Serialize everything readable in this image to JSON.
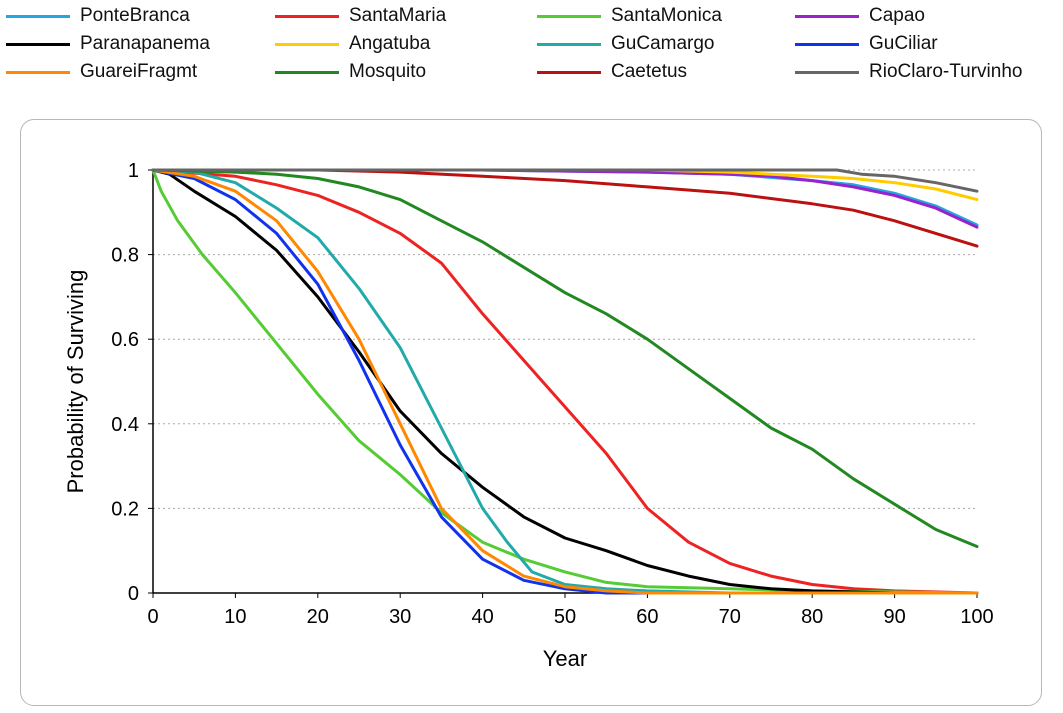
{
  "chart_data": {
    "type": "line",
    "title": "",
    "xlabel": "Year",
    "ylabel": "Probability of Surviving",
    "xlim": [
      0,
      100
    ],
    "ylim": [
      0,
      1
    ],
    "xticks": [
      0,
      10,
      20,
      30,
      40,
      50,
      60,
      70,
      80,
      90,
      100
    ],
    "yticks": [
      0,
      0.2,
      0.4,
      0.6,
      0.8,
      1
    ],
    "ytick_labels": [
      "0",
      "0.2",
      "0.4",
      "0.6",
      "0.8",
      "1"
    ],
    "grid": "horizontal dotted",
    "legend_position": "top, above plot in 4 columns",
    "series": [
      {
        "name": "PonteBranca",
        "color": "#22a7e0",
        "x": [
          0,
          20,
          40,
          60,
          70,
          80,
          85,
          90,
          95,
          100
        ],
        "y": [
          1,
          1,
          1,
          0.995,
          0.99,
          0.975,
          0.965,
          0.945,
          0.915,
          0.87
        ]
      },
      {
        "name": "SantaMaria",
        "color": "#ee2222",
        "x": [
          0,
          10,
          15,
          20,
          25,
          30,
          35,
          40,
          45,
          50,
          55,
          60,
          65,
          70,
          75,
          80,
          85,
          90,
          100
        ],
        "y": [
          1,
          0.985,
          0.965,
          0.94,
          0.9,
          0.85,
          0.78,
          0.66,
          0.55,
          0.44,
          0.33,
          0.2,
          0.12,
          0.07,
          0.04,
          0.02,
          0.01,
          0.005,
          0
        ]
      },
      {
        "name": "SantaMonica",
        "color": "#55cc33",
        "x": [
          0,
          1,
          3,
          6,
          10,
          15,
          20,
          25,
          30,
          35,
          40,
          45,
          50,
          55,
          60,
          70,
          80,
          100
        ],
        "y": [
          1,
          0.95,
          0.88,
          0.8,
          0.71,
          0.59,
          0.47,
          0.36,
          0.28,
          0.19,
          0.12,
          0.08,
          0.05,
          0.025,
          0.015,
          0.01,
          0.005,
          0
        ]
      },
      {
        "name": "Capao",
        "color": "#9922cc",
        "x": [
          0,
          20,
          40,
          60,
          70,
          75,
          80,
          85,
          90,
          95,
          100
        ],
        "y": [
          1,
          1,
          1,
          0.995,
          0.99,
          0.985,
          0.975,
          0.96,
          0.94,
          0.91,
          0.865
        ]
      },
      {
        "name": "Paranapanema",
        "color": "#000000",
        "x": [
          0,
          2,
          5,
          10,
          15,
          20,
          25,
          30,
          35,
          40,
          45,
          50,
          55,
          60,
          65,
          70,
          75,
          80,
          90,
          100
        ],
        "y": [
          1,
          0.99,
          0.95,
          0.89,
          0.81,
          0.7,
          0.57,
          0.43,
          0.33,
          0.25,
          0.18,
          0.13,
          0.1,
          0.065,
          0.04,
          0.02,
          0.01,
          0.005,
          0,
          0
        ]
      },
      {
        "name": "Angatuba",
        "color": "#ffcc00",
        "x": [
          0,
          20,
          40,
          60,
          70,
          75,
          80,
          85,
          90,
          95,
          100
        ],
        "y": [
          1,
          1,
          1,
          1,
          0.995,
          0.99,
          0.985,
          0.98,
          0.97,
          0.955,
          0.93
        ]
      },
      {
        "name": "GuCamargo",
        "color": "#22aaaa",
        "x": [
          0,
          5,
          10,
          15,
          20,
          25,
          30,
          35,
          40,
          43,
          46,
          50,
          55,
          60,
          70,
          100
        ],
        "y": [
          1,
          0.995,
          0.97,
          0.91,
          0.84,
          0.72,
          0.58,
          0.39,
          0.2,
          0.12,
          0.05,
          0.02,
          0.01,
          0.005,
          0,
          0
        ]
      },
      {
        "name": "GuCiliar",
        "color": "#1133ee",
        "x": [
          0,
          5,
          10,
          15,
          20,
          25,
          30,
          35,
          40,
          45,
          50,
          55,
          60,
          100
        ],
        "y": [
          1,
          0.98,
          0.93,
          0.85,
          0.73,
          0.55,
          0.35,
          0.18,
          0.08,
          0.03,
          0.01,
          0,
          0,
          0
        ]
      },
      {
        "name": "GuareiFragmt",
        "color": "#ff8800",
        "x": [
          0,
          5,
          10,
          15,
          20,
          25,
          30,
          35,
          40,
          45,
          50,
          55,
          60,
          100
        ],
        "y": [
          1,
          0.985,
          0.95,
          0.88,
          0.76,
          0.6,
          0.4,
          0.2,
          0.1,
          0.04,
          0.015,
          0.005,
          0,
          0
        ]
      },
      {
        "name": "Mosquito",
        "color": "#228822",
        "x": [
          0,
          10,
          15,
          20,
          25,
          30,
          35,
          40,
          45,
          50,
          55,
          60,
          65,
          70,
          75,
          80,
          85,
          90,
          95,
          100
        ],
        "y": [
          1,
          0.995,
          0.99,
          0.98,
          0.96,
          0.93,
          0.88,
          0.83,
          0.77,
          0.71,
          0.66,
          0.6,
          0.53,
          0.46,
          0.39,
          0.34,
          0.27,
          0.21,
          0.15,
          0.11
        ]
      },
      {
        "name": "Caetetus",
        "color": "#bb1111",
        "x": [
          0,
          20,
          30,
          40,
          50,
          60,
          70,
          80,
          85,
          90,
          95,
          100
        ],
        "y": [
          1,
          1,
          0.995,
          0.985,
          0.975,
          0.96,
          0.945,
          0.92,
          0.905,
          0.88,
          0.85,
          0.82
        ]
      },
      {
        "name": "RioClaro-Turvinho",
        "color": "#666666",
        "x": [
          0,
          20,
          40,
          60,
          80,
          83,
          86,
          90,
          95,
          100
        ],
        "y": [
          1,
          1,
          1,
          1,
          1,
          1,
          0.99,
          0.985,
          0.97,
          0.95
        ]
      }
    ]
  }
}
